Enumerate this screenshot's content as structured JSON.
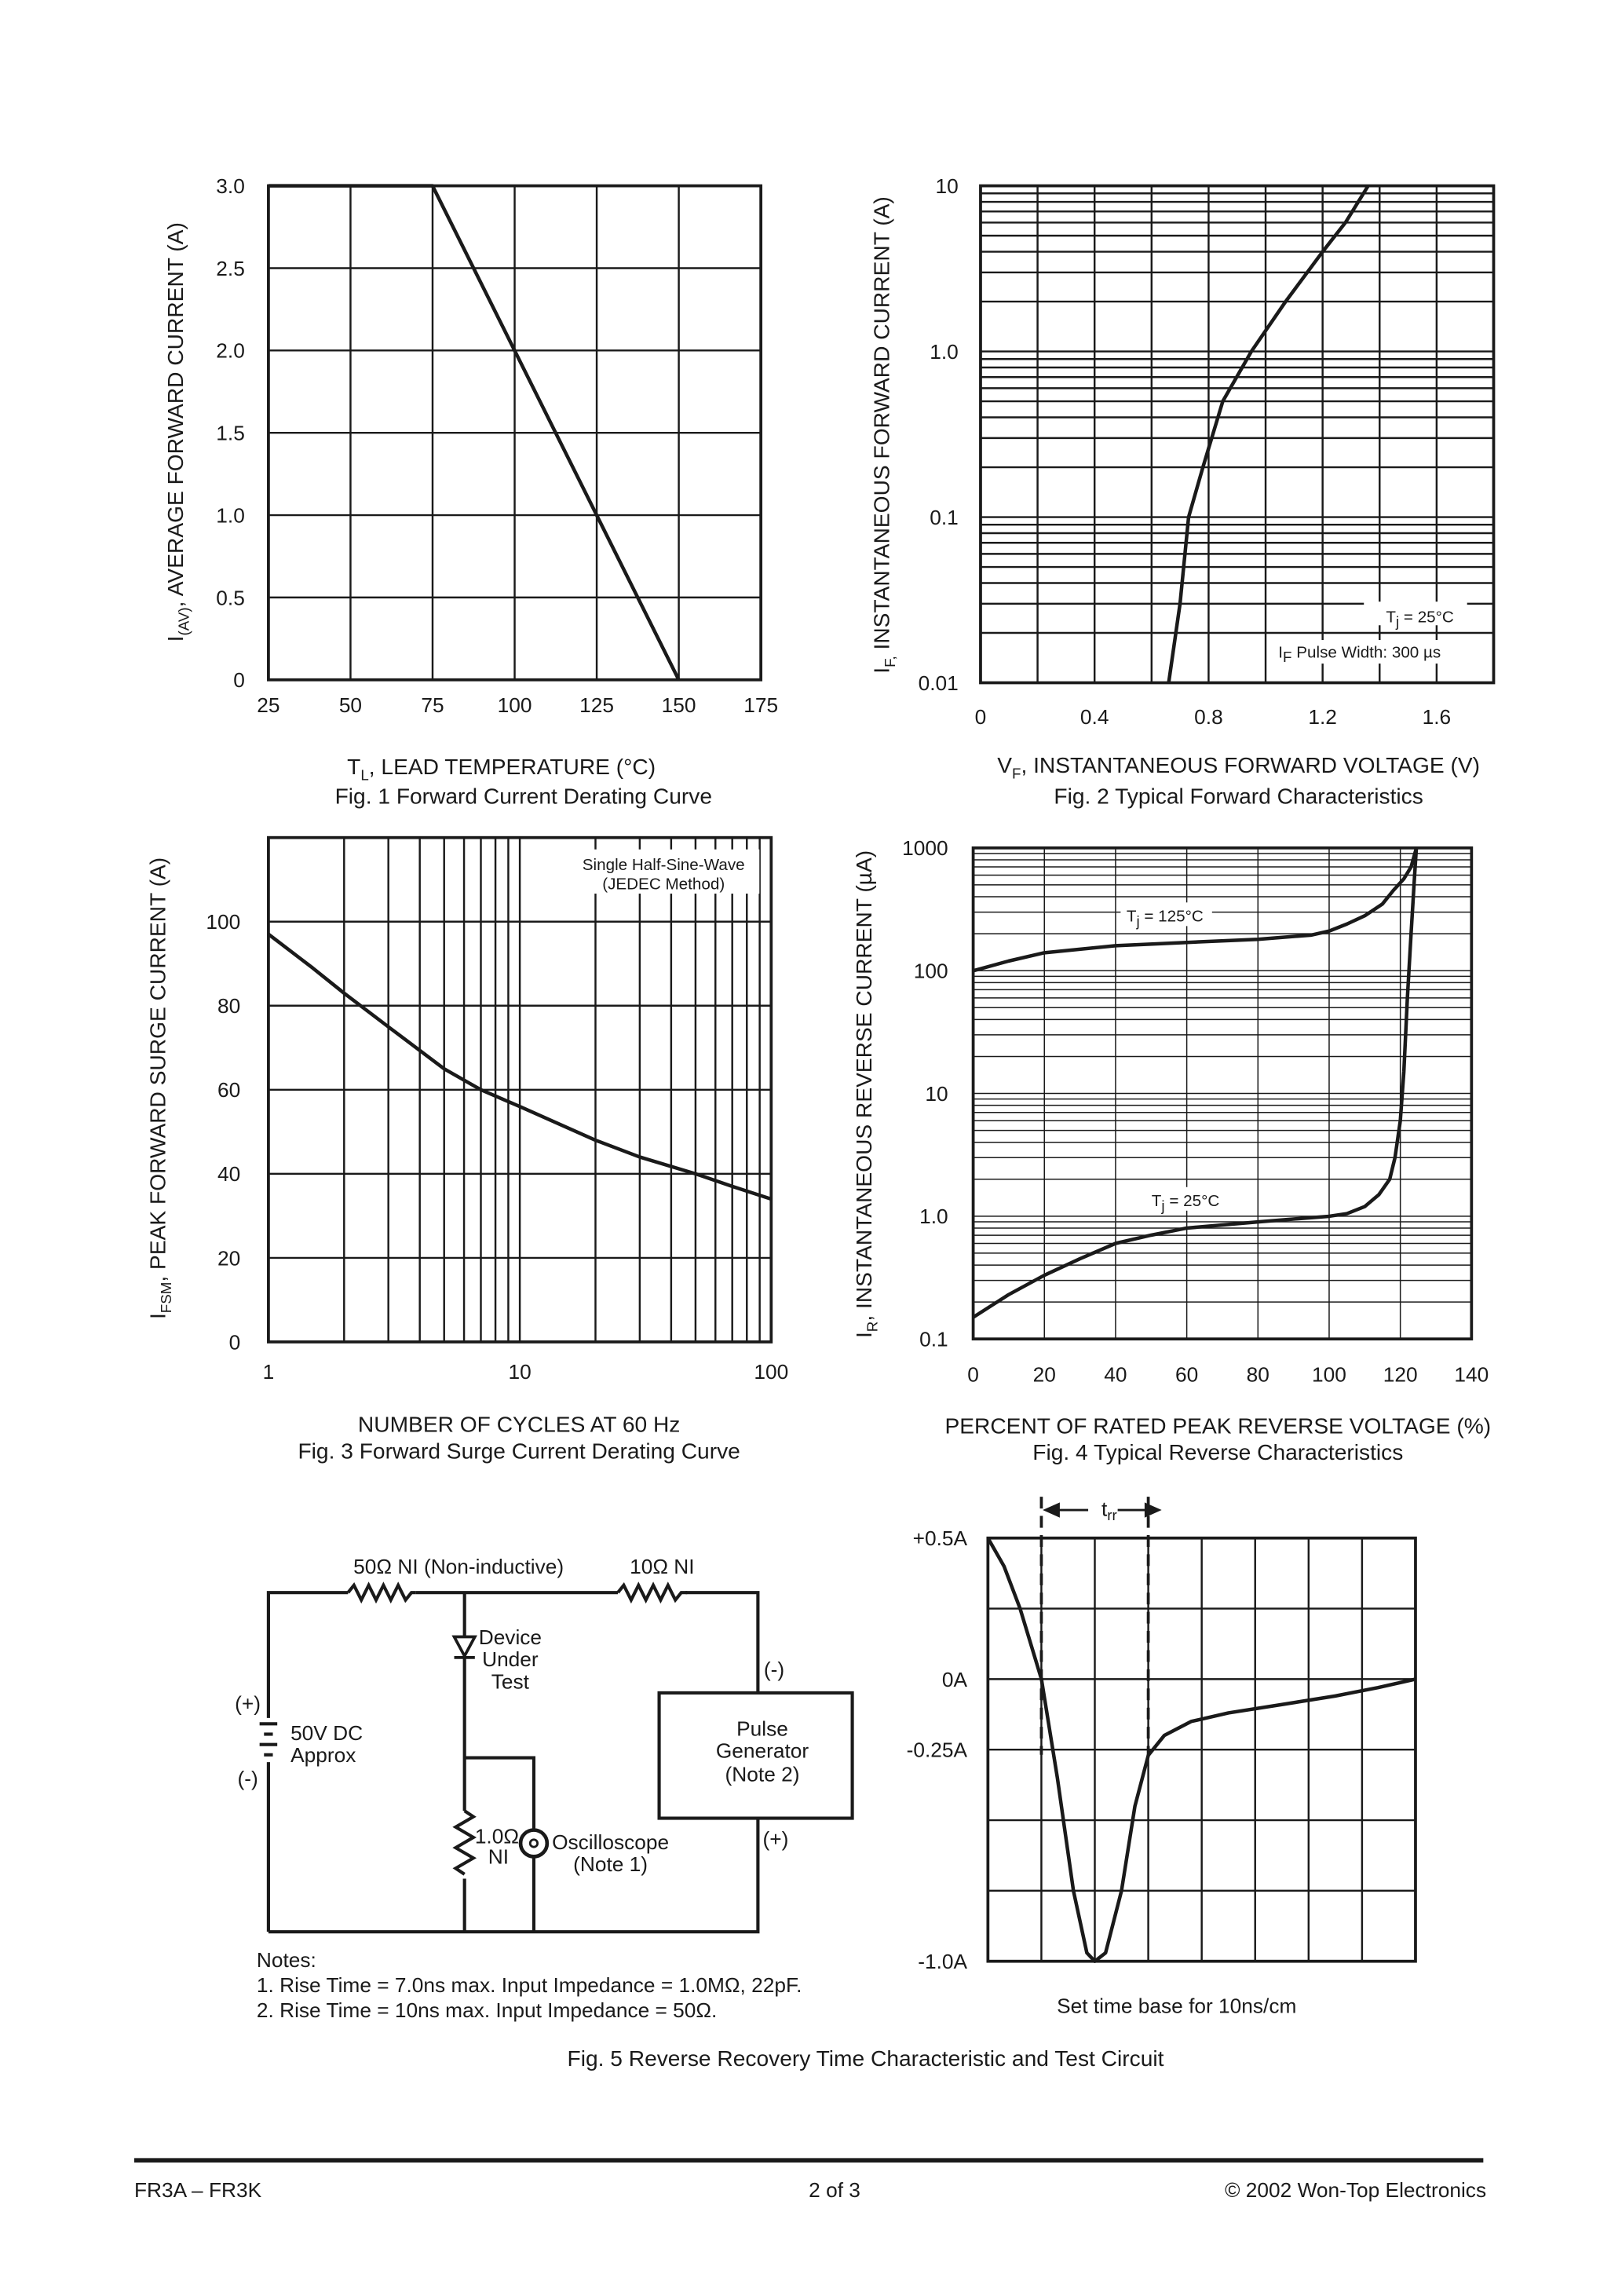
{
  "fig1": {
    "caption": "Fig. 1  Forward Current Derating Curve",
    "ylabel_main": "I",
    "ylabel_sub": "(AV)",
    "ylabel_rest": ", AVERAGE FORWARD CURRENT (A)",
    "xlabel_main": "T",
    "xlabel_sub": "L",
    "xlabel_rest": ",  LEAD TEMPERATURE (°C)"
  },
  "fig2": {
    "caption": "Fig. 2  Typical Forward Characteristics",
    "ylabel_main": "I",
    "ylabel_sub": "F,",
    "ylabel_rest": " INSTANTANEOUS FORWARD CURRENT (A)",
    "xlabel_main": "V",
    "xlabel_sub": "F",
    "xlabel_rest": ", INSTANTANEOUS FORWARD VOLTAGE (V)",
    "note1_main": "T",
    "note1_sub": "j",
    "note1_rest": " = 25°C",
    "note2_main": "I",
    "note2_sub": "F",
    "note2_rest": " Pulse Width: 300 µs"
  },
  "fig3": {
    "caption": "Fig. 3  Forward Surge Current Derating Curve",
    "ylabel_main": "I",
    "ylabel_sub": "FSM",
    "ylabel_rest": ", PEAK FORWARD SURGE CURRENT (A)",
    "xlabel": "NUMBER OF CYCLES AT 60 Hz",
    "note1": "Single Half-Sine-Wave",
    "note2": "(JEDEC Method)"
  },
  "fig4": {
    "caption": "Fig. 4  Typical Reverse Characteristics",
    "ylabel_main": "I",
    "ylabel_sub": "R",
    "ylabel_rest": ", INSTANTANEOUS REVERSE CURRENT (µA)",
    "xlabel": "PERCENT OF RATED PEAK REVERSE VOLTAGE (%)",
    "label_hot_main": "T",
    "label_hot_sub": "j",
    "label_hot_rest": " = 125°C",
    "label_cold_main": "T",
    "label_cold_sub": "j",
    "label_cold_rest": " = 25°C"
  },
  "fig5": {
    "caption": "Fig. 5  Reverse Recovery Time Characteristic and Test Circuit",
    "circuit": {
      "r1": "50Ω NI (Non-inductive)",
      "r2": "10Ω NI",
      "dut": [
        "Device",
        "Under",
        "Test"
      ],
      "source": [
        "50V DC",
        "Approx"
      ],
      "plus": "(+)",
      "minus": "(-)",
      "pulse": [
        "Pulse",
        "Generator",
        "(Note 2)"
      ],
      "r3": [
        "1.0Ω",
        "NI"
      ],
      "scope": [
        "Oscilloscope",
        "(Note 1)"
      ]
    },
    "notes": [
      "Notes:",
      "1. Rise Time = 7.0ns max. Input Impedance = 1.0MΩ, 22pF.",
      "2. Rise Time = 10ns max. Input Impedance = 50Ω."
    ],
    "trr_main": "t",
    "trr_sub": "rr",
    "timebase": "Set time base for 10ns/cm",
    "ytick_labels": [
      "+0.5A",
      "0A",
      "-0.25A",
      "-1.0A"
    ]
  },
  "footer": {
    "left": "FR3A – FR3K",
    "center": "2  of  3",
    "right": "© 2002 Won-Top Electronics"
  },
  "chart_data": [
    {
      "type": "line",
      "title": "Fig. 1  Forward Current Derating Curve",
      "xlim": [
        25,
        175
      ],
      "ylim": [
        0,
        3.0
      ],
      "grid": true,
      "xticks": [
        "25",
        "50",
        "75",
        "100",
        "125",
        "150",
        "175"
      ],
      "yticks": [
        "0",
        "0.5",
        "1.0",
        "1.5",
        "2.0",
        "2.5",
        "3.0"
      ],
      "series": [
        {
          "x": [
            25,
            75,
            150
          ],
          "y": [
            3.0,
            3.0,
            0
          ]
        }
      ]
    },
    {
      "type": "line",
      "title": "Fig. 2  Typical Forward Characteristics",
      "xlim": [
        0,
        1.8
      ],
      "ylim": [
        0.01,
        10
      ],
      "yscale": "log",
      "grid": true,
      "xticks": [
        "0",
        "0.4",
        "0.8",
        "1.2",
        "1.6"
      ],
      "yticks": [
        "0.01",
        "0.1",
        "1.0",
        "10"
      ],
      "series": [
        {
          "name": "Tj = 25°C",
          "x": [
            0.66,
            0.7,
            0.73,
            0.78,
            0.85,
            0.95,
            1.07,
            1.2,
            1.28,
            1.36
          ],
          "y": [
            0.01,
            0.03,
            0.1,
            0.2,
            0.5,
            1.0,
            2,
            4,
            6,
            10
          ]
        }
      ]
    },
    {
      "type": "line",
      "title": "Fig. 3  Forward Surge Current Derating Curve",
      "xlim": [
        1,
        100
      ],
      "xscale": "log",
      "ylim": [
        0,
        120
      ],
      "grid": true,
      "xticks": [
        "1",
        "10",
        "100"
      ],
      "yticks": [
        "0",
        "20",
        "40",
        "60",
        "80",
        "100"
      ],
      "series": [
        {
          "x": [
            1,
            1.5,
            2,
            3,
            5,
            7,
            10,
            20,
            30,
            50,
            70,
            100
          ],
          "y": [
            97,
            89,
            83,
            75,
            65,
            60,
            56,
            48,
            44,
            40,
            37,
            34
          ]
        }
      ]
    },
    {
      "type": "line",
      "title": "Fig. 4  Typical Reverse Characteristics",
      "xlim": [
        0,
        140
      ],
      "ylim": [
        0.1,
        1000
      ],
      "yscale": "log",
      "grid": true,
      "xticks": [
        "0",
        "20",
        "40",
        "60",
        "80",
        "100",
        "120",
        "140"
      ],
      "yticks": [
        "0.1",
        "1.0",
        "10",
        "100",
        "1000"
      ],
      "series": [
        {
          "name": "Tj = 125°C",
          "x": [
            0,
            10,
            20,
            40,
            60,
            80,
            95,
            100,
            105,
            110,
            115,
            118,
            121,
            123,
            124.5
          ],
          "y": [
            100,
            120,
            140,
            160,
            170,
            180,
            195,
            210,
            240,
            280,
            350,
            450,
            560,
            700,
            1000
          ]
        },
        {
          "name": "Tj = 25°C",
          "x": [
            0,
            10,
            20,
            30,
            40,
            50,
            60,
            80,
            100,
            105,
            110,
            114,
            117,
            118.5,
            120,
            121,
            122,
            123,
            124,
            124.5
          ],
          "y": [
            0.15,
            0.23,
            0.33,
            0.45,
            0.6,
            0.7,
            0.8,
            0.9,
            1.0,
            1.05,
            1.2,
            1.5,
            2,
            3,
            6,
            15,
            60,
            200,
            600,
            1000
          ]
        }
      ]
    },
    {
      "type": "line",
      "title": "Fig. 5  Reverse Recovery Time Characteristic and Test Circuit",
      "xlabel": "Set time base for 10ns/cm",
      "xlim": [
        0,
        8
      ],
      "ylim": [
        -1.0,
        0.5
      ],
      "grid": true,
      "yticks": [
        "+0.5A",
        "0A",
        "-0.25A",
        "-1.0A"
      ],
      "trr_markers": [
        1,
        3
      ],
      "series": [
        {
          "x": [
            0,
            0.3,
            0.6,
            1,
            1.3,
            1.6,
            1.85,
            2,
            2.2,
            2.5,
            2.75,
            3,
            3.3,
            3.8,
            4.5,
            5.5,
            6.5,
            7.3,
            8
          ],
          "y": [
            0.5,
            0.4,
            0.25,
            0,
            -0.35,
            -0.75,
            -0.97,
            -1.0,
            -0.97,
            -0.75,
            -0.45,
            -0.27,
            -0.2,
            -0.15,
            -0.12,
            -0.09,
            -0.06,
            -0.03,
            0
          ]
        }
      ]
    }
  ]
}
